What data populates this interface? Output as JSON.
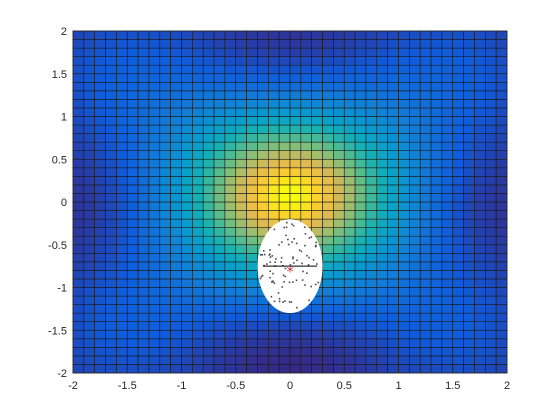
{
  "chart_data": {
    "type": "heatmap",
    "title": "",
    "xlabel": "",
    "ylabel": "",
    "xlim": [
      -2,
      2
    ],
    "ylim": [
      -2,
      2
    ],
    "grid_cells": 40,
    "grid_lines": true,
    "colormap": "parula",
    "surface": "Z = exp(-x^2/2 - y^2/2) with cos-shaped lobes, peak near (0, 0.2), minima near (±1.6, ±1.5)",
    "masked_region": {
      "description": "blank (white) region with scattered points",
      "center": [
        0,
        -0.95
      ],
      "x_range": [
        -0.3,
        0.3
      ],
      "y_range": [
        -1.3,
        -0.2
      ]
    },
    "marker": {
      "x": 0,
      "y": -0.8,
      "symbol": "*",
      "color": "#d62728"
    },
    "line": {
      "y": -0.75,
      "x_range": [
        -0.25,
        0.25
      ],
      "color": "#000000"
    },
    "xticks": [
      "-2",
      "-1.5",
      "-1",
      "-0.5",
      "0",
      "0.5",
      "1",
      "1.5",
      "2"
    ],
    "yticks": [
      "2",
      "1.5",
      "1",
      "0.5",
      "0",
      "-0.5",
      "-1",
      "-1.5",
      "-2"
    ],
    "xtick_values": [
      -2,
      -1.5,
      -1,
      -0.5,
      0,
      0.5,
      1,
      1.5,
      2
    ],
    "ytick_values": [
      2,
      1.5,
      1,
      0.5,
      0,
      -0.5,
      -1,
      -1.5,
      -2
    ]
  }
}
